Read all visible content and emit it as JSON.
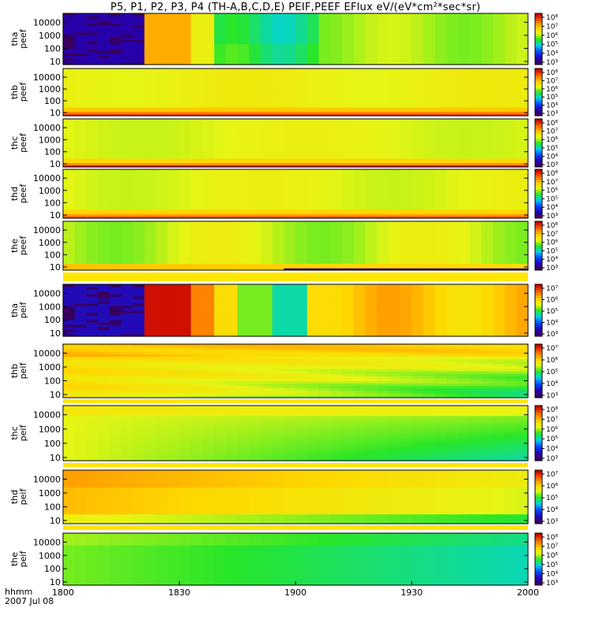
{
  "title": "P5, P1, P2, P3, P4 (TH-A,B,C,D,E) PEIF,PEEF EFlux eV/(eV*cm²*sec*sr)",
  "footer": {
    "time_label": "hhmm",
    "date_label": "2007 Jul 08"
  },
  "chart_data": {
    "type": "heatmap",
    "x_ticks": [
      "1800",
      "1830",
      "1900",
      "1930",
      "2000"
    ],
    "x_range": [
      "18:00",
      "20:00"
    ],
    "y_scale": "log",
    "y_ticks": [
      "10",
      "100",
      "1000",
      "10000"
    ],
    "colorbar_scale": "log",
    "colormap": "rainbow",
    "panels": [
      {
        "probe": "tha",
        "product": "peef",
        "ylabel": [
          "tha",
          "peef"
        ],
        "cbar_ticks": [
          "10³",
          "10⁴",
          "10⁵",
          "10⁶",
          "10⁷",
          "10⁸"
        ]
      },
      {
        "probe": "thb",
        "product": "peef",
        "ylabel": [
          "thb",
          "peef"
        ],
        "cbar_ticks": [
          "10³",
          "10⁴",
          "10⁵",
          "10⁶",
          "10⁷",
          "10⁸"
        ]
      },
      {
        "probe": "thc",
        "product": "peef",
        "ylabel": [
          "thc",
          "peef"
        ],
        "cbar_ticks": [
          "10³",
          "10⁴",
          "10⁵",
          "10⁶",
          "10⁷",
          "10⁸"
        ]
      },
      {
        "probe": "thd",
        "product": "peef",
        "ylabel": [
          "thd",
          "peef"
        ],
        "cbar_ticks": [
          "10³",
          "10⁴",
          "10⁵",
          "10⁶",
          "10⁷",
          "10⁸"
        ]
      },
      {
        "probe": "the",
        "product": "peef",
        "ylabel": [
          "the",
          "peef"
        ],
        "cbar_ticks": [
          "10³",
          "10⁴",
          "10⁵",
          "10⁶",
          "10⁷",
          "10⁸"
        ]
      },
      {
        "probe": "tha",
        "product": "peif",
        "ylabel": [
          "tha",
          "peif"
        ],
        "cbar_ticks": [
          "10³",
          "10⁴",
          "10⁵",
          "10⁶",
          "10⁷"
        ]
      },
      {
        "probe": "thb",
        "product": "peif",
        "ylabel": [
          "thb",
          "peif"
        ],
        "cbar_ticks": [
          "10³",
          "10⁴",
          "10⁵",
          "10⁶",
          "10⁷"
        ]
      },
      {
        "probe": "thc",
        "product": "peif",
        "ylabel": [
          "thc",
          "peif"
        ],
        "cbar_ticks": [
          "10³",
          "10⁴",
          "10⁵",
          "10⁶",
          "10⁷",
          "10⁸"
        ]
      },
      {
        "probe": "thd",
        "product": "peif",
        "ylabel": [
          "thd",
          "peif"
        ],
        "cbar_ticks": [
          "10³",
          "10⁴",
          "10⁵",
          "10⁶",
          "10⁷"
        ]
      },
      {
        "probe": "the",
        "product": "peif",
        "ylabel": [
          "the",
          "peif"
        ],
        "cbar_ticks": [
          "10³",
          "10⁴",
          "10⁵",
          "10⁶",
          "10⁷",
          "10⁸"
        ]
      }
    ]
  }
}
